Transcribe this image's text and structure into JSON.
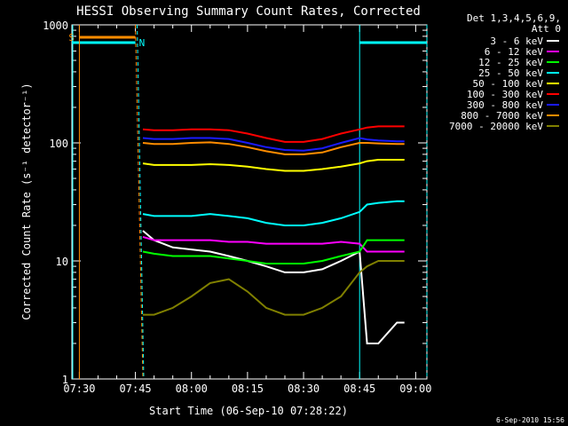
{
  "chart_data": {
    "type": "line",
    "title": "HESSI Observing Summary Count Rates, Corrected",
    "xlabel": "Start Time (06-Sep-10 07:28:22)",
    "ylabel": "Corrected Count Rate (s⁻¹ detector⁻¹)",
    "y_scale": "log",
    "ylim": [
      1,
      1000
    ],
    "xlim_minutes_after_0728": [
      0,
      95
    ],
    "x_ticks": [
      "07:30",
      "07:45",
      "08:00",
      "08:15",
      "08:30",
      "08:45",
      "09:00"
    ],
    "y_ticks": [
      "1",
      "10",
      "100",
      "1000"
    ],
    "legend_header": [
      "Det 1,3,4,5,6,9,",
      "Att 0"
    ],
    "legend_position": "right",
    "timestamp": "6-Sep-2010 15:56",
    "markers": [
      {
        "label": "S",
        "color": "#ff8c00",
        "start": "07:30",
        "end": "07:45"
      },
      {
        "label": "N",
        "color": "#00ffff",
        "start": "07:28",
        "end": "07:45"
      },
      {
        "label": "",
        "color": "#00ffff",
        "start": "08:45",
        "end": "09:03"
      }
    ],
    "time_axis": [
      "07:47",
      "07:50",
      "07:55",
      "08:00",
      "08:05",
      "08:10",
      "08:15",
      "08:20",
      "08:25",
      "08:30",
      "08:35",
      "08:40",
      "08:45",
      "08:47",
      "08:50",
      "08:55",
      "08:57"
    ],
    "series": [
      {
        "name": "3 - 6 keV",
        "color": "#ffffff",
        "values": [
          18,
          15,
          13,
          12.5,
          12,
          11,
          10,
          9,
          8,
          8,
          8.5,
          10,
          12,
          2,
          2,
          3,
          3
        ]
      },
      {
        "name": "6 - 12 keV",
        "color": "#ff00ff",
        "values": [
          16,
          15,
          15,
          15,
          15,
          14.5,
          14.5,
          14,
          14,
          14,
          14,
          14.5,
          14,
          12,
          12,
          12,
          12
        ]
      },
      {
        "name": "12 - 25 keV",
        "color": "#00ff00",
        "values": [
          12,
          11.5,
          11,
          11,
          11,
          10.5,
          10,
          9.5,
          9.5,
          9.5,
          10,
          11,
          12,
          15,
          15,
          15,
          15
        ]
      },
      {
        "name": "25 - 50 keV",
        "color": "#00ffff",
        "values": [
          25,
          24,
          24,
          24,
          25,
          24,
          23,
          21,
          20,
          20,
          21,
          23,
          26,
          30,
          31,
          32,
          32
        ]
      },
      {
        "name": "50 - 100 keV",
        "color": "#ffff00",
        "values": [
          67,
          65,
          65,
          65,
          66,
          65,
          63,
          60,
          58,
          58,
          60,
          63,
          67,
          70,
          72,
          72,
          72
        ]
      },
      {
        "name": "100 - 300 keV",
        "color": "#ff0000",
        "values": [
          130,
          128,
          128,
          130,
          130,
          128,
          120,
          110,
          102,
          102,
          108,
          120,
          130,
          135,
          138,
          138,
          138
        ]
      },
      {
        "name": "300 - 800 keV",
        "color": "#1a1aff",
        "values": [
          110,
          108,
          108,
          110,
          110,
          108,
          100,
          92,
          87,
          86,
          90,
          100,
          110,
          107,
          105,
          103,
          103
        ]
      },
      {
        "name": "800 - 7000 keV",
        "color": "#ff8c00",
        "values": [
          100,
          98,
          98,
          100,
          101,
          98,
          92,
          85,
          80,
          80,
          83,
          92,
          100,
          100,
          99,
          98,
          98
        ]
      },
      {
        "name": "7000 - 20000 keV",
        "color": "#808000",
        "values": [
          3.5,
          3.5,
          4,
          5,
          6.5,
          7,
          5.5,
          4,
          3.5,
          3.5,
          4,
          5,
          8,
          9,
          10,
          10,
          10
        ]
      }
    ]
  }
}
